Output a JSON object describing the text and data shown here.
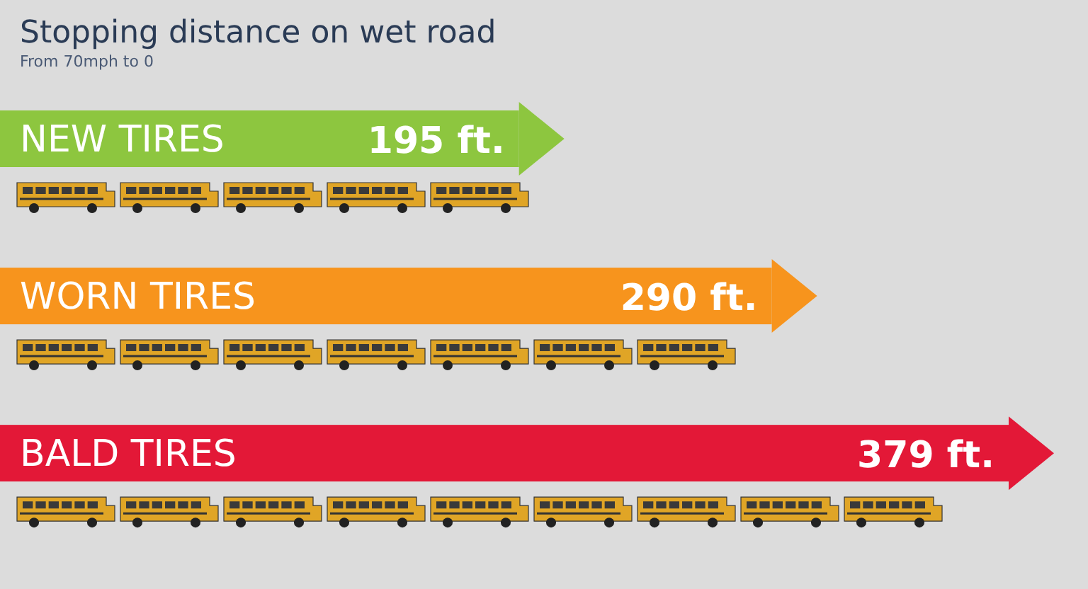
{
  "chart_data": {
    "type": "bar",
    "orientation": "horizontal",
    "title": "Stopping distance on wet road",
    "subtitle": "From 70mph to 0",
    "categories": [
      "NEW TIRES",
      "WORN TIRES",
      "BALD TIRES"
    ],
    "values": [
      195,
      290,
      379
    ],
    "colors": [
      "#8dc63f",
      "#f7941d",
      "#e31837"
    ],
    "value_labels": [
      "195 ft.",
      "290 ft.",
      "379 ft."
    ]
  }
}
